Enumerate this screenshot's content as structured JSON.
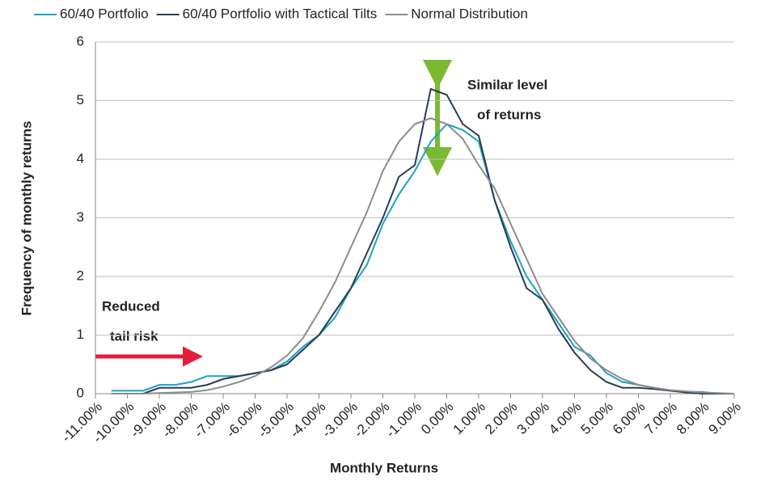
{
  "chart_data": {
    "type": "line",
    "xlabel": "Monthly Returns",
    "ylabel": "Frequency of monthly returns",
    "x": [
      -10.5,
      -10,
      -9.5,
      -9,
      -8.5,
      -8,
      -7.5,
      -7,
      -6.5,
      -6,
      -5.5,
      -5,
      -4.5,
      -4,
      -3.5,
      -3,
      -2.5,
      -2,
      -1.5,
      -1,
      -0.5,
      0,
      0.5,
      1,
      1.5,
      2,
      2.5,
      3,
      3.5,
      4,
      4.5,
      5,
      5.5,
      6,
      6.5,
      7,
      7.5,
      8,
      8.5,
      9
    ],
    "series": [
      {
        "name": "60/40 Portfolio",
        "color": "#1ba3c2",
        "values": [
          0.05,
          0.05,
          0.05,
          0.15,
          0.15,
          0.2,
          0.3,
          0.3,
          0.3,
          0.35,
          0.4,
          0.55,
          0.8,
          1.0,
          1.3,
          1.8,
          2.2,
          2.9,
          3.4,
          3.8,
          4.3,
          4.6,
          4.5,
          4.3,
          3.3,
          2.6,
          2.0,
          1.6,
          1.2,
          0.8,
          0.65,
          0.35,
          0.2,
          0.15,
          0.1,
          0.05,
          0.03,
          0.03,
          0,
          0
        ]
      },
      {
        "name": "60/40 Portfolio with Tactical Tilts",
        "color": "#2b3a55",
        "values": [
          0,
          0,
          0,
          0.1,
          0.1,
          0.1,
          0.15,
          0.25,
          0.3,
          0.35,
          0.4,
          0.5,
          0.75,
          1.0,
          1.4,
          1.8,
          2.4,
          3.0,
          3.7,
          3.9,
          5.2,
          5.1,
          4.6,
          4.4,
          3.3,
          2.5,
          1.8,
          1.6,
          1.1,
          0.7,
          0.4,
          0.2,
          0.1,
          0.1,
          0.08,
          0.05,
          0.02,
          0,
          0,
          0
        ]
      },
      {
        "name": "Normal Distribution",
        "color": "#8c8c8c",
        "values": [
          0,
          0,
          0,
          0.01,
          0.02,
          0.03,
          0.06,
          0.12,
          0.2,
          0.3,
          0.45,
          0.65,
          0.95,
          1.4,
          1.9,
          2.5,
          3.1,
          3.8,
          4.3,
          4.6,
          4.7,
          4.6,
          4.35,
          3.9,
          3.5,
          2.9,
          2.3,
          1.7,
          1.3,
          0.9,
          0.6,
          0.4,
          0.25,
          0.15,
          0.1,
          0.06,
          0.04,
          0.02,
          0.01,
          0
        ]
      }
    ],
    "xlim": [
      -11,
      9
    ],
    "xticks": [
      {
        "value": -11,
        "label": "-11.00%"
      },
      {
        "value": -10,
        "label": "-10.00%"
      },
      {
        "value": -9,
        "label": "-9.00%"
      },
      {
        "value": -8,
        "label": "-8.00%"
      },
      {
        "value": -7,
        "label": "-7.00%"
      },
      {
        "value": -6,
        "label": "-6.00%"
      },
      {
        "value": -5,
        "label": "-5.00%"
      },
      {
        "value": -4,
        "label": "-4.00%"
      },
      {
        "value": -3,
        "label": "-3.00%"
      },
      {
        "value": -2,
        "label": "-2.00%"
      },
      {
        "value": -1,
        "label": "-1.00%"
      },
      {
        "value": 0,
        "label": "0.00%"
      },
      {
        "value": 1,
        "label": "1.00%"
      },
      {
        "value": 2,
        "label": "2.00%"
      },
      {
        "value": 3,
        "label": "3.00%"
      },
      {
        "value": 4,
        "label": "4.00%"
      },
      {
        "value": 5,
        "label": "5.00%"
      },
      {
        "value": 6,
        "label": "6.00%"
      },
      {
        "value": 7,
        "label": "7.00%"
      },
      {
        "value": 8,
        "label": "8.00%"
      },
      {
        "value": 9,
        "label": "9.00%"
      }
    ],
    "ylim": [
      0,
      6
    ],
    "yticks": [
      0,
      1,
      2,
      3,
      4,
      5,
      6
    ],
    "grid": true,
    "legend": "top",
    "annotations": [
      "Similar level",
      "of returns",
      "Reduced",
      "tail risk"
    ]
  }
}
